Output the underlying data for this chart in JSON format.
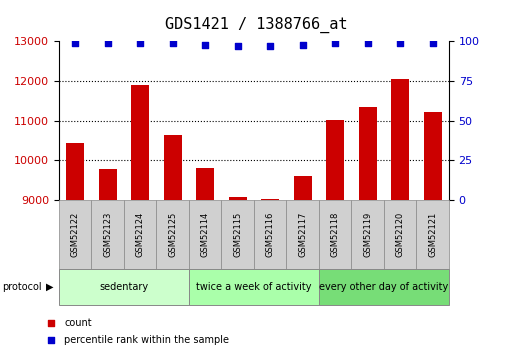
{
  "title": "GDS1421 / 1388766_at",
  "samples": [
    "GSM52122",
    "GSM52123",
    "GSM52124",
    "GSM52125",
    "GSM52114",
    "GSM52115",
    "GSM52116",
    "GSM52117",
    "GSM52118",
    "GSM52119",
    "GSM52120",
    "GSM52121"
  ],
  "counts": [
    10450,
    9780,
    11900,
    10640,
    9820,
    9080,
    9020,
    9610,
    11020,
    11350,
    12040,
    11230
  ],
  "percentile_ranks": [
    99,
    99,
    99,
    99,
    98,
    97,
    97,
    98,
    99,
    99,
    99,
    99
  ],
  "ylim_left": [
    9000,
    13000
  ],
  "ylim_right": [
    0,
    100
  ],
  "yticks_left": [
    9000,
    10000,
    11000,
    12000,
    13000
  ],
  "yticks_right": [
    0,
    25,
    50,
    75,
    100
  ],
  "bar_color": "#cc0000",
  "dot_color": "#0000cc",
  "group_colors": [
    "#ccffcc",
    "#aaffaa",
    "#77dd77"
  ],
  "groups": [
    {
      "label": "sedentary",
      "start": 0,
      "end": 4
    },
    {
      "label": "twice a week of activity",
      "start": 4,
      "end": 8
    },
    {
      "label": "every other day of activity",
      "start": 8,
      "end": 12
    }
  ],
  "protocol_label": "protocol",
  "legend_count_label": "count",
  "legend_percentile_label": "percentile rank within the sample",
  "tick_color_left": "#cc0000",
  "tick_color_right": "#0000cc",
  "title_fontsize": 11,
  "tick_fontsize": 8,
  "sample_fontsize": 6,
  "group_fontsize": 7,
  "legend_fontsize": 7,
  "bar_baseline": 9000,
  "sample_box_color": "#d0d0d0",
  "sample_box_edgecolor": "#888888"
}
